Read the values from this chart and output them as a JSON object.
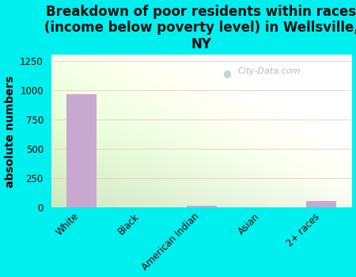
{
  "title": "Breakdown of poor residents within races\n(income below poverty level) in Wellsville,\nNY",
  "categories": [
    "White",
    "Black",
    "American Indian",
    "Asian",
    "2+ races"
  ],
  "values": [
    968,
    0,
    14,
    0,
    55
  ],
  "bar_color": "#c8a8d0",
  "ylabel": "absolute numbers",
  "ylim": [
    0,
    1300
  ],
  "yticks": [
    0,
    250,
    500,
    750,
    1000,
    1250
  ],
  "bg_color": "#00efef",
  "plot_bg_left": "#d0e8c0",
  "plot_bg_right": "#f8faf0",
  "watermark": "City-Data.com",
  "title_fontsize": 12,
  "ylabel_fontsize": 10,
  "tick_label_fontsize": 8.5
}
